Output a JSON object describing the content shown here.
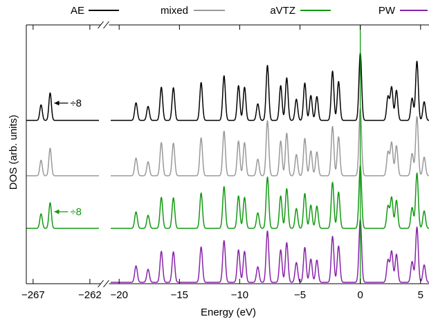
{
  "chart_data": {
    "type": "line",
    "xlabel": "Energy (eV)",
    "ylabel": "DOS (arb. units)",
    "axis_break": true,
    "xlim_left_segment": [
      -267.6,
      -261.2
    ],
    "xlim_right_segment": [
      -20.7,
      5.7
    ],
    "xticks_left": [
      {
        "value": -267,
        "label": "−267"
      },
      {
        "value": -262,
        "label": "−262"
      }
    ],
    "xticks_right": [
      {
        "value": -20,
        "label": "−20"
      },
      {
        "value": -15,
        "label": "−15"
      },
      {
        "value": -10,
        "label": "−10"
      },
      {
        "value": -5,
        "label": "−5"
      },
      {
        "value": 0,
        "label": "0"
      },
      {
        "value": 5,
        "label": "5"
      }
    ],
    "legend_position": "top",
    "grid": false,
    "vertical_line_at": 0,
    "series": [
      {
        "name": "AE",
        "color": "#000000",
        "scale_factor_core": "÷8"
      },
      {
        "name": "mixed",
        "color": "#999999"
      },
      {
        "name": "aVTZ",
        "color": "#119911",
        "scale_factor_core": "÷8"
      },
      {
        "name": "PW",
        "color": "#8822aa"
      }
    ],
    "core_peaks": [
      {
        "energy": -266.3,
        "height": 0.3
      },
      {
        "energy": -265.5,
        "height": 0.53
      }
    ],
    "valence_peaks": [
      {
        "energy": -18.6,
        "height": 0.34
      },
      {
        "energy": -17.6,
        "height": 0.27
      },
      {
        "energy": -16.5,
        "height": 0.64
      },
      {
        "energy": -15.5,
        "height": 0.63
      },
      {
        "energy": -13.2,
        "height": 0.73
      },
      {
        "energy": -11.3,
        "height": 0.86
      },
      {
        "energy": -10.1,
        "height": 0.67
      },
      {
        "energy": -9.6,
        "height": 0.64
      },
      {
        "energy": -8.5,
        "height": 0.32
      },
      {
        "energy": -7.7,
        "height": 1.06
      },
      {
        "energy": -6.6,
        "height": 0.67
      },
      {
        "energy": -6.1,
        "height": 0.82
      },
      {
        "energy": -5.3,
        "height": 0.41
      },
      {
        "energy": -4.6,
        "height": 0.72
      },
      {
        "energy": -4.1,
        "height": 0.48
      },
      {
        "energy": -3.6,
        "height": 0.46
      },
      {
        "energy": -2.3,
        "height": 0.95
      },
      {
        "energy": -1.8,
        "height": 0.75
      },
      {
        "energy": 0.0,
        "height": 1.3
      },
      {
        "energy": 2.3,
        "height": 0.46
      },
      {
        "energy": 2.6,
        "height": 0.64
      },
      {
        "energy": 3.0,
        "height": 0.58
      },
      {
        "energy": 4.3,
        "height": 0.43
      },
      {
        "energy": 4.7,
        "height": 1.14
      },
      {
        "energy": 5.3,
        "height": 0.36
      }
    ]
  }
}
